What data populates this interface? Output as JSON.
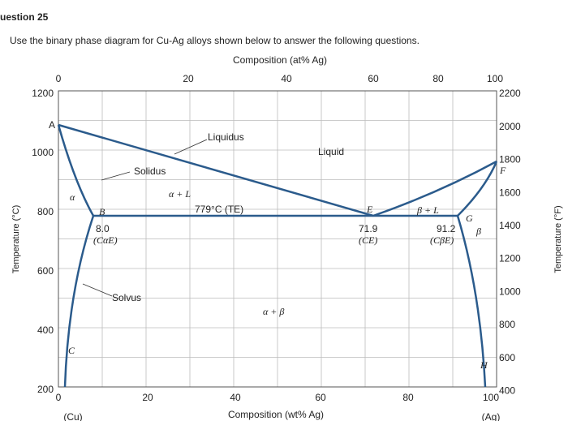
{
  "header": {
    "title": "uestion 25",
    "instruction": "Use the binary phase diagram for Cu-Ag alloys shown below to answer the following questions."
  },
  "diagram": {
    "top_axis_title": "Composition (at% Ag)",
    "top_ticks": [
      "0",
      "20",
      "40",
      "60",
      "80",
      "100"
    ],
    "left_axis_title": "Temperature (°C)",
    "left_ticks": [
      "1200",
      "1000",
      "800",
      "600",
      "400",
      "200"
    ],
    "right_axis_title": "Temperature (°F)",
    "right_ticks": [
      "2200",
      "2000",
      "1800",
      "1600",
      "1400",
      "1200",
      "1000",
      "800",
      "600",
      "400"
    ],
    "bottom_axis_title": "Composition (wt% Ag)",
    "bottom_ticks": [
      "0",
      "20",
      "40",
      "60",
      "80",
      "100"
    ],
    "bottom_end_labels": [
      "(Cu)",
      "(Ag)"
    ],
    "labels": [
      "A",
      "Liquidus",
      "Liquid",
      "Solidus",
      "α",
      "α + L",
      "779°C (TE)",
      "B",
      "8.0",
      "(CαE)",
      "E",
      "β + L",
      "G",
      "β",
      "71.9",
      "(CE)",
      "91.2",
      "(CβE)",
      "Solvus",
      "α + β",
      "C",
      "H",
      "F"
    ]
  }
}
